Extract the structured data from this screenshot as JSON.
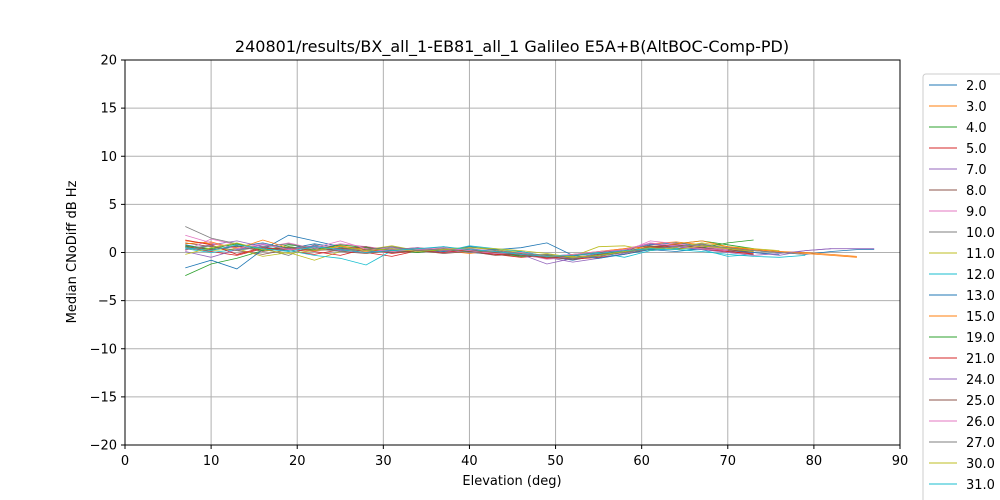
{
  "chart_data": {
    "type": "line",
    "title": "240801/results/BX_all_1-EB81_all_1 Galileo E5A+B(AltBOC-Comp-PD)",
    "xlabel": "Elevation (deg)",
    "ylabel": "Median CNoDiff dB Hz",
    "xlim": [
      0,
      90
    ],
    "ylim": [
      -20,
      20
    ],
    "xticks": [
      0,
      10,
      20,
      30,
      40,
      50,
      60,
      70,
      80,
      90
    ],
    "yticks": [
      -20,
      -15,
      -10,
      -5,
      0,
      5,
      10,
      15,
      20
    ],
    "grid": true,
    "legend_position": "outside-right",
    "x": [
      7,
      10,
      13,
      16,
      19,
      22,
      25,
      28,
      31,
      34,
      37,
      40,
      43,
      46,
      49,
      52,
      55,
      58,
      61,
      64,
      67,
      70,
      73,
      76,
      79,
      82,
      85,
      87
    ],
    "series": [
      {
        "name": "2.0",
        "color": "#1f77b4",
        "values": [
          0.8,
          0.3,
          0.6,
          1.0,
          0.4,
          0.9,
          0.5,
          0.2,
          0.4,
          0.1,
          0.3,
          0.0,
          -0.2,
          0.1,
          -0.4,
          -0.8,
          -0.3,
          0.2,
          0.8,
          1.0,
          0.7,
          0.4,
          0.2,
          0.0,
          -0.2,
          0.1,
          0.3,
          0.3
        ]
      },
      {
        "name": "3.0",
        "color": "#ff7f0e",
        "values": [
          1.2,
          0.9,
          0.5,
          0.3,
          0.6,
          0.2,
          0.4,
          0.1,
          0.3,
          0.5,
          0.2,
          -0.1,
          0.2,
          -0.3,
          -0.6,
          -0.4,
          0.1,
          0.4,
          0.9,
          1.1,
          0.8,
          0.5,
          0.3,
          0.1,
          0.0,
          -0.2,
          -0.4,
          null
        ]
      },
      {
        "name": "4.0",
        "color": "#2ca02c",
        "values": [
          -2.4,
          -1.2,
          -0.6,
          0.2,
          0.8,
          0.5,
          0.3,
          0.6,
          0.2,
          0.4,
          0.1,
          0.2,
          -0.1,
          -0.4,
          -0.2,
          -0.6,
          -0.3,
          0.0,
          0.5,
          0.9,
          1.2,
          0.8,
          0.4,
          null,
          null,
          null,
          null,
          null
        ]
      },
      {
        "name": "5.0",
        "color": "#d62728",
        "values": [
          0.5,
          0.1,
          -0.3,
          0.4,
          0.2,
          -0.2,
          0.3,
          0.0,
          -0.4,
          0.2,
          0.4,
          0.1,
          -0.2,
          -0.5,
          -0.3,
          -0.7,
          -0.5,
          -0.2,
          0.4,
          0.6,
          0.3,
          0.1,
          -0.1,
          null,
          null,
          null,
          null,
          null
        ]
      },
      {
        "name": "7.0",
        "color": "#9467bd",
        "values": [
          0.3,
          0.8,
          1.2,
          0.6,
          0.1,
          0.7,
          0.4,
          0.2,
          0.5,
          0.3,
          0.0,
          0.2,
          0.3,
          -0.1,
          -0.5,
          -1.0,
          -0.6,
          -0.1,
          0.6,
          0.8,
          0.5,
          0.2,
          0.0,
          -0.3,
          0.2,
          0.4,
          0.4,
          0.4
        ]
      },
      {
        "name": "8.0",
        "color": "#8c564b",
        "values": [
          1.0,
          0.6,
          0.2,
          -0.2,
          0.3,
          0.6,
          0.1,
          -0.1,
          0.2,
          0.0,
          0.3,
          0.1,
          -0.3,
          -0.2,
          -0.4,
          -0.3,
          0.0,
          0.3,
          0.7,
          0.4,
          0.6,
          0.3,
          0.1,
          null,
          null,
          null,
          null,
          null
        ]
      },
      {
        "name": "9.0",
        "color": "#e377c2",
        "values": [
          0.2,
          1.4,
          0.8,
          0.5,
          1.0,
          0.4,
          0.9,
          0.6,
          0.3,
          0.1,
          0.2,
          0.0,
          0.1,
          -0.2,
          -0.7,
          -0.5,
          -0.2,
          0.1,
          1.2,
          0.9,
          0.6,
          0.3,
          null,
          null,
          null,
          null,
          null,
          null
        ]
      },
      {
        "name": "10.0",
        "color": "#7f7f7f",
        "values": [
          2.7,
          1.5,
          0.9,
          0.4,
          -0.3,
          0.8,
          0.2,
          0.5,
          0.1,
          0.3,
          0.6,
          0.2,
          0.0,
          -0.3,
          -0.2,
          -0.5,
          -0.4,
          0.0,
          0.3,
          0.6,
          0.9,
          0.4,
          0.2,
          0.0,
          null,
          null,
          null,
          null
        ]
      },
      {
        "name": "11.0",
        "color": "#bcbd22",
        "values": [
          0.6,
          0.2,
          0.4,
          -0.4,
          0.0,
          -0.8,
          0.1,
          0.3,
          0.7,
          0.2,
          0.4,
          0.5,
          0.3,
          0.0,
          -0.3,
          -0.4,
          0.6,
          0.7,
          0.2,
          0.5,
          1.0,
          0.6,
          0.4,
          0.2,
          null,
          null,
          null,
          null
        ]
      },
      {
        "name": "12.0",
        "color": "#17becf",
        "values": [
          0.4,
          0.0,
          0.3,
          0.6,
          0.2,
          -0.3,
          -0.6,
          -1.3,
          0.2,
          0.4,
          0.1,
          0.7,
          0.4,
          0.1,
          -0.4,
          -0.2,
          0.0,
          -0.5,
          0.2,
          0.4,
          0.3,
          -0.4,
          -0.2,
          null,
          null,
          null,
          null,
          null
        ]
      },
      {
        "name": "13.0",
        "color": "#1f77b4",
        "values": [
          -1.6,
          -0.8,
          -1.7,
          0.3,
          1.8,
          1.2,
          0.6,
          0.2,
          0.0,
          0.3,
          0.1,
          0.6,
          0.3,
          0.5,
          1.0,
          -0.3,
          -0.6,
          -0.2,
          0.3,
          0.1,
          0.4,
          0.2,
          0.0,
          -0.2,
          null,
          null,
          null,
          null
        ]
      },
      {
        "name": "15.0",
        "color": "#ff7f0e",
        "values": [
          0.9,
          1.1,
          0.4,
          1.3,
          0.5,
          0.2,
          0.7,
          0.3,
          0.1,
          0.4,
          0.2,
          0.3,
          0.0,
          -0.2,
          -0.5,
          -0.2,
          0.1,
          0.4,
          0.6,
          0.9,
          1.2,
          0.6,
          0.3,
          0.1,
          -0.1,
          -0.3,
          -0.5,
          null
        ]
      },
      {
        "name": "19.0",
        "color": "#2ca02c",
        "values": [
          0.7,
          0.4,
          0.9,
          0.2,
          0.6,
          0.3,
          0.8,
          0.5,
          0.2,
          0.0,
          0.3,
          0.1,
          0.2,
          -0.4,
          -0.3,
          -0.5,
          -0.2,
          0.1,
          0.4,
          0.7,
          0.5,
          1.0,
          1.3,
          null,
          null,
          null,
          null,
          null
        ]
      },
      {
        "name": "21.0",
        "color": "#d62728",
        "values": [
          1.3,
          0.8,
          -0.2,
          0.5,
          0.3,
          0.1,
          -0.3,
          0.4,
          -0.1,
          0.2,
          0.0,
          0.3,
          -0.2,
          -0.1,
          -0.6,
          -0.3,
          -0.1,
          0.2,
          0.5,
          0.7,
          0.4,
          0.1,
          -0.2,
          null,
          null,
          null,
          null,
          null
        ]
      },
      {
        "name": "24.0",
        "color": "#9467bd",
        "values": [
          0.1,
          -0.5,
          0.3,
          0.8,
          0.4,
          0.7,
          0.2,
          0.0,
          0.3,
          0.5,
          0.2,
          0.4,
          0.1,
          -0.2,
          -1.2,
          -0.6,
          -0.1,
          0.3,
          0.9,
          0.6,
          0.3,
          0.0,
          -0.3,
          -0.1,
          0.2,
          0.4,
          null,
          null
        ]
      },
      {
        "name": "25.0",
        "color": "#8c564b",
        "values": [
          0.6,
          0.3,
          0.7,
          0.1,
          0.5,
          0.2,
          0.4,
          0.6,
          0.0,
          0.2,
          -0.1,
          0.1,
          0.0,
          -0.3,
          -0.5,
          -0.7,
          -0.2,
          0.0,
          0.6,
          0.8,
          0.5,
          0.2,
          0.1,
          null,
          null,
          null,
          null,
          null
        ]
      },
      {
        "name": "26.0",
        "color": "#e377c2",
        "values": [
          1.8,
          1.0,
          0.4,
          0.9,
          0.3,
          0.5,
          1.2,
          0.4,
          0.1,
          0.3,
          0.5,
          0.2,
          -0.1,
          0.0,
          -0.4,
          -0.2,
          0.1,
          0.3,
          1.0,
          0.7,
          0.4,
          0.2,
          null,
          null,
          null,
          null,
          null,
          null
        ]
      },
      {
        "name": "27.0",
        "color": "#7f7f7f",
        "values": [
          0.3,
          0.7,
          0.2,
          0.6,
          0.9,
          0.4,
          0.1,
          0.3,
          0.6,
          0.2,
          0.4,
          0.0,
          0.2,
          -0.1,
          -0.3,
          -0.6,
          -0.4,
          0.0,
          0.4,
          0.6,
          0.8,
          0.5,
          0.2,
          0.0,
          -0.2,
          null,
          null,
          null
        ]
      },
      {
        "name": "30.0",
        "color": "#bcbd22",
        "values": [
          -0.2,
          0.5,
          1.0,
          0.3,
          -0.1,
          0.2,
          0.6,
          0.2,
          0.4,
          0.1,
          0.3,
          0.5,
          0.4,
          0.2,
          -0.1,
          -0.5,
          -0.3,
          0.1,
          0.5,
          0.3,
          0.7,
          0.4,
          0.1,
          null,
          null,
          null,
          null,
          null
        ]
      },
      {
        "name": "31.0",
        "color": "#17becf",
        "values": [
          0.5,
          0.2,
          0.8,
          0.4,
          0.1,
          0.6,
          0.3,
          0.0,
          0.2,
          0.4,
          0.6,
          0.3,
          0.1,
          -0.2,
          -0.4,
          -0.3,
          -0.1,
          0.2,
          0.4,
          0.3,
          0.1,
          -0.2,
          -0.4,
          -0.5,
          -0.3,
          null,
          null,
          null
        ]
      }
    ]
  }
}
